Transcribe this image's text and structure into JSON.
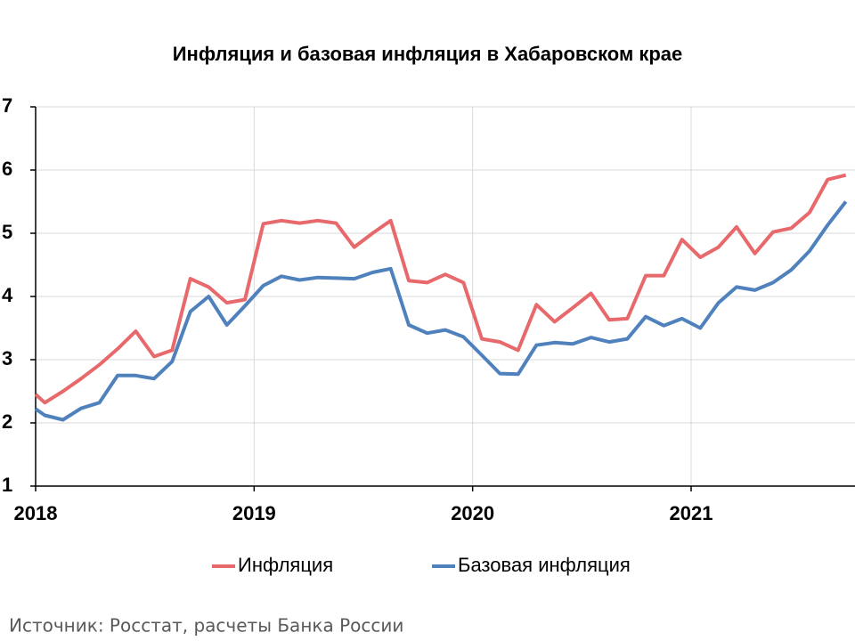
{
  "chart_data": {
    "type": "line",
    "title": "Инфляция и базовая инфляция в Хабаровском крае",
    "source": "Источник: Росстат, расчеты Банка России",
    "x": [
      2018.0,
      2018.042,
      2018.125,
      2018.208,
      2018.292,
      2018.375,
      2018.458,
      2018.542,
      2018.625,
      2018.708,
      2018.792,
      2018.875,
      2018.958,
      2019.042,
      2019.125,
      2019.208,
      2019.292,
      2019.375,
      2019.458,
      2019.542,
      2019.625,
      2019.708,
      2019.792,
      2019.875,
      2019.958,
      2020.042,
      2020.125,
      2020.208,
      2020.292,
      2020.375,
      2020.458,
      2020.542,
      2020.625,
      2020.708,
      2020.792,
      2020.875,
      2020.958,
      2021.042,
      2021.125,
      2021.208,
      2021.292,
      2021.375,
      2021.458,
      2021.542,
      2021.625,
      2021.708
    ],
    "series": [
      {
        "name": "Инфляция",
        "color": "#e8696b",
        "values": [
          2.45,
          2.32,
          2.5,
          2.7,
          2.92,
          3.17,
          3.45,
          3.05,
          3.15,
          4.28,
          4.15,
          3.9,
          3.95,
          5.15,
          5.2,
          5.16,
          5.2,
          5.16,
          4.78,
          5.0,
          5.2,
          4.25,
          4.22,
          4.35,
          4.22,
          3.33,
          3.28,
          3.15,
          3.87,
          3.6,
          3.82,
          4.05,
          3.63,
          3.65,
          4.33,
          4.33,
          4.9,
          4.62,
          4.78,
          5.1,
          4.68,
          5.02,
          5.08,
          5.33,
          5.85,
          5.92
        ]
      },
      {
        "name": "Базовая инфляция",
        "color": "#4f81bd",
        "values": [
          2.22,
          2.12,
          2.05,
          2.23,
          2.32,
          2.75,
          2.75,
          2.7,
          2.97,
          3.76,
          4.0,
          3.55,
          3.85,
          4.17,
          4.32,
          4.26,
          4.3,
          4.29,
          4.28,
          4.38,
          4.44,
          3.55,
          3.42,
          3.47,
          3.36,
          3.07,
          2.78,
          2.77,
          3.23,
          3.27,
          3.25,
          3.35,
          3.28,
          3.33,
          3.68,
          3.54,
          3.65,
          3.5,
          3.9,
          4.15,
          4.1,
          4.22,
          4.42,
          4.72,
          5.13,
          5.5
        ]
      }
    ],
    "xlim": [
      2018,
      2021.75
    ],
    "xticks": [
      2018,
      2019,
      2020,
      2021
    ],
    "ylim": [
      1,
      7
    ],
    "yticks": [
      1,
      2,
      3,
      4,
      5,
      6,
      7
    ],
    "grid": true
  }
}
